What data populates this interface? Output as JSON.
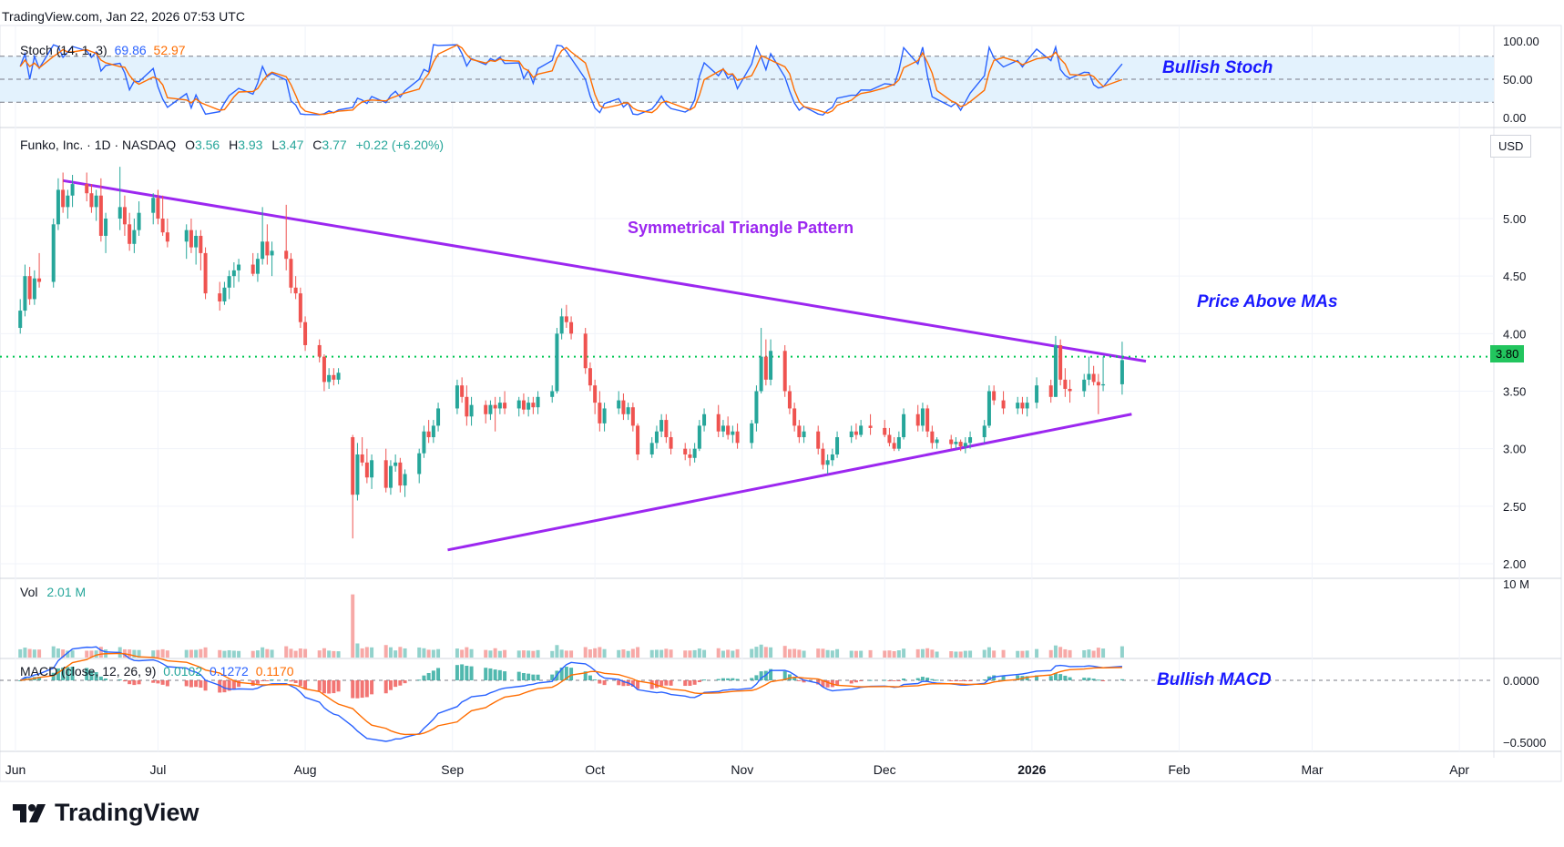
{
  "header": {
    "source": "TradingView.com",
    "date": "Jan 22, 2026 07:53 UTC"
  },
  "stoch": {
    "label": "Stoch (14, 1, 3)",
    "k_value": "69.86",
    "d_value": "52.97",
    "ticks": [
      "100.00",
      "50.00",
      "0.00"
    ],
    "annotation": "Bullish Stoch",
    "colors": {
      "k": "#2962ff",
      "d": "#ff6d00",
      "band": "#e3f2fd"
    }
  },
  "price": {
    "symbol": "Funko, Inc. · 1D · NASDAQ",
    "o_label": "O",
    "o": "3.56",
    "h_label": "H",
    "h": "3.93",
    "l_label": "L",
    "l": "3.47",
    "c_label": "C",
    "c": "3.77",
    "change": "+0.22 (+6.20%)",
    "currency": "USD",
    "current_price": "3.80",
    "ticks": [
      "5.00",
      "4.50",
      "4.00",
      "3.50",
      "3.00",
      "2.50",
      "2.00"
    ],
    "pattern_label": "Symmetrical Triangle Pattern",
    "ma_label": "Price Above MAs",
    "colors": {
      "up": "#26a69a",
      "down": "#ef5350",
      "pattern": "#9c27f0",
      "level": "#00c853"
    }
  },
  "volume": {
    "label": "Vol",
    "value": "2.01 M",
    "tick": "10 M"
  },
  "macd": {
    "label": "MACD (close, 12, 26, 9)",
    "hist": "0.0102",
    "macd": "0.1272",
    "signal": "0.1170",
    "ticks": [
      "0.0000",
      "−0.5000"
    ],
    "annotation": "Bullish MACD",
    "colors": {
      "macd": "#2962ff",
      "signal": "#ff6d00",
      "hist_up": "#26a69a",
      "hist_down": "#ef5350"
    }
  },
  "time_axis": [
    "Jun",
    "Jul",
    "Aug",
    "Sep",
    "Oct",
    "Nov",
    "Dec",
    "2026",
    "Feb",
    "Mar",
    "Apr"
  ],
  "brand": "TradingView",
  "chart_data": {
    "type": "candlestick",
    "title": "Funko, Inc. · 1D · NASDAQ",
    "ylim": [
      2.0,
      5.6
    ],
    "x_range": [
      "2025-06-01",
      "2026-04-05"
    ],
    "current_price": 3.8,
    "trendlines": [
      {
        "name": "upper",
        "from": [
          "2025-06-11",
          5.33
        ],
        "to": [
          "2026-01-25",
          3.76
        ]
      },
      {
        "name": "lower",
        "from": [
          "2025-08-31",
          2.12
        ],
        "to": [
          "2026-01-22",
          3.3
        ]
      }
    ],
    "candles": [
      [
        "2025-06-02",
        4.05,
        4.3,
        4.0,
        4.2
      ],
      [
        "2025-06-03",
        4.2,
        4.6,
        4.15,
        4.5
      ],
      [
        "2025-06-04",
        4.5,
        4.58,
        4.25,
        4.3
      ],
      [
        "2025-06-05",
        4.3,
        4.55,
        4.25,
        4.48
      ],
      [
        "2025-06-06",
        4.48,
        4.7,
        4.4,
        4.45
      ],
      [
        "2025-06-09",
        4.45,
        5.0,
        4.4,
        4.95
      ],
      [
        "2025-06-10",
        4.95,
        5.35,
        4.9,
        5.25
      ],
      [
        "2025-06-11",
        5.25,
        5.4,
        5.05,
        5.1
      ],
      [
        "2025-06-12",
        5.1,
        5.25,
        5.0,
        5.2
      ],
      [
        "2025-06-13",
        5.2,
        5.38,
        5.1,
        5.3
      ],
      [
        "2025-06-16",
        5.3,
        5.4,
        5.15,
        5.22
      ],
      [
        "2025-06-17",
        5.22,
        5.3,
        5.05,
        5.1
      ],
      [
        "2025-06-18",
        5.1,
        5.25,
        4.98,
        5.2
      ],
      [
        "2025-06-19",
        5.2,
        5.35,
        4.8,
        4.85
      ],
      [
        "2025-06-20",
        4.85,
        5.05,
        4.7,
        5.0
      ],
      [
        "2025-06-23",
        5.0,
        5.45,
        4.9,
        5.1
      ],
      [
        "2025-06-24",
        5.1,
        5.2,
        4.85,
        4.95
      ],
      [
        "2025-06-25",
        4.95,
        5.05,
        4.72,
        4.78
      ],
      [
        "2025-06-26",
        4.78,
        5.0,
        4.7,
        4.9
      ],
      [
        "2025-06-27",
        4.9,
        5.15,
        4.85,
        5.05
      ],
      [
        "2025-06-30",
        5.05,
        5.22,
        4.95,
        5.18
      ],
      [
        "2025-07-01",
        5.18,
        5.25,
        4.95,
        5.0
      ],
      [
        "2025-07-02",
        5.0,
        5.2,
        4.85,
        4.88
      ],
      [
        "2025-07-03",
        4.88,
        5.0,
        4.75,
        4.8
      ],
      [
        "2025-07-07",
        4.8,
        4.95,
        4.65,
        4.9
      ],
      [
        "2025-07-08",
        4.9,
        5.0,
        4.7,
        4.75
      ],
      [
        "2025-07-09",
        4.75,
        4.9,
        4.6,
        4.85
      ],
      [
        "2025-07-10",
        4.85,
        4.9,
        4.55,
        4.7
      ],
      [
        "2025-07-11",
        4.7,
        4.75,
        4.3,
        4.35
      ],
      [
        "2025-07-14",
        4.35,
        4.45,
        4.2,
        4.28
      ],
      [
        "2025-07-15",
        4.28,
        4.45,
        4.25,
        4.4
      ],
      [
        "2025-07-16",
        4.4,
        4.55,
        4.3,
        4.5
      ],
      [
        "2025-07-17",
        4.5,
        4.62,
        4.4,
        4.55
      ],
      [
        "2025-07-18",
        4.55,
        4.65,
        4.45,
        4.6
      ],
      [
        "2025-07-21",
        4.6,
        4.7,
        4.5,
        4.52
      ],
      [
        "2025-07-22",
        4.52,
        4.7,
        4.45,
        4.65
      ],
      [
        "2025-07-23",
        4.65,
        5.1,
        4.6,
        4.8
      ],
      [
        "2025-07-24",
        4.8,
        4.95,
        4.6,
        4.68
      ],
      [
        "2025-07-25",
        4.68,
        4.8,
        4.5,
        4.72
      ],
      [
        "2025-07-28",
        4.72,
        5.12,
        4.55,
        4.65
      ],
      [
        "2025-07-29",
        4.65,
        4.7,
        4.35,
        4.4
      ],
      [
        "2025-07-30",
        4.4,
        4.5,
        4.3,
        4.35
      ],
      [
        "2025-07-31",
        4.35,
        4.4,
        4.05,
        4.1
      ],
      [
        "2025-08-01",
        4.1,
        4.15,
        3.85,
        3.9
      ],
      [
        "2025-08-04",
        3.9,
        3.95,
        3.75,
        3.8
      ],
      [
        "2025-08-05",
        3.8,
        3.82,
        3.5,
        3.58
      ],
      [
        "2025-08-06",
        3.58,
        3.7,
        3.52,
        3.64
      ],
      [
        "2025-08-07",
        3.64,
        3.7,
        3.55,
        3.6
      ],
      [
        "2025-08-08",
        3.6,
        3.7,
        3.56,
        3.66
      ],
      [
        "2025-08-11",
        3.1,
        3.12,
        2.22,
        2.6
      ],
      [
        "2025-08-12",
        2.6,
        3.05,
        2.55,
        2.95
      ],
      [
        "2025-08-13",
        2.95,
        3.1,
        2.85,
        2.88
      ],
      [
        "2025-08-14",
        2.88,
        3.0,
        2.7,
        2.75
      ],
      [
        "2025-08-15",
        2.75,
        2.95,
        2.65,
        2.9
      ],
      [
        "2025-08-18",
        2.9,
        3.0,
        2.62,
        2.66
      ],
      [
        "2025-08-19",
        2.66,
        2.9,
        2.6,
        2.85
      ],
      [
        "2025-08-20",
        2.85,
        2.95,
        2.8,
        2.88
      ],
      [
        "2025-08-21",
        2.88,
        2.92,
        2.62,
        2.68
      ],
      [
        "2025-08-22",
        2.68,
        2.82,
        2.58,
        2.78
      ],
      [
        "2025-08-25",
        2.78,
        3.0,
        2.7,
        2.96
      ],
      [
        "2025-08-26",
        2.96,
        3.2,
        2.92,
        3.15
      ],
      [
        "2025-08-27",
        3.15,
        3.25,
        3.05,
        3.1
      ],
      [
        "2025-08-28",
        3.1,
        3.25,
        3.05,
        3.2
      ],
      [
        "2025-08-29",
        3.2,
        3.4,
        3.15,
        3.35
      ],
      [
        "2025-09-02",
        3.35,
        3.6,
        3.3,
        3.55
      ],
      [
        "2025-09-03",
        3.55,
        3.62,
        3.4,
        3.45
      ],
      [
        "2025-09-04",
        3.45,
        3.55,
        3.2,
        3.28
      ],
      [
        "2025-09-05",
        3.28,
        3.45,
        3.2,
        3.38
      ],
      [
        "2025-09-08",
        3.38,
        3.42,
        3.22,
        3.3
      ],
      [
        "2025-09-09",
        3.3,
        3.42,
        3.25,
        3.38
      ],
      [
        "2025-09-10",
        3.38,
        3.45,
        3.15,
        3.35
      ],
      [
        "2025-09-11",
        3.35,
        3.45,
        3.3,
        3.4
      ],
      [
        "2025-09-12",
        3.4,
        3.5,
        3.3,
        3.35
      ],
      [
        "2025-09-15",
        3.35,
        3.45,
        3.28,
        3.42
      ],
      [
        "2025-09-16",
        3.42,
        3.48,
        3.3,
        3.34
      ],
      [
        "2025-09-17",
        3.34,
        3.45,
        3.28,
        3.4
      ],
      [
        "2025-09-18",
        3.4,
        3.45,
        3.3,
        3.36
      ],
      [
        "2025-09-19",
        3.36,
        3.5,
        3.3,
        3.45
      ],
      [
        "2025-09-22",
        3.45,
        3.55,
        3.4,
        3.5
      ],
      [
        "2025-09-23",
        3.5,
        4.05,
        3.48,
        4.0
      ],
      [
        "2025-09-24",
        4.0,
        4.22,
        3.95,
        4.15
      ],
      [
        "2025-09-25",
        4.15,
        4.25,
        4.05,
        4.1
      ],
      [
        "2025-09-26",
        4.1,
        4.15,
        3.95,
        4.0
      ],
      [
        "2025-09-29",
        4.0,
        4.05,
        3.65,
        3.7
      ],
      [
        "2025-09-30",
        3.7,
        3.75,
        3.5,
        3.55
      ],
      [
        "2025-10-01",
        3.55,
        3.6,
        3.3,
        3.4
      ],
      [
        "2025-10-02",
        3.4,
        3.5,
        3.15,
        3.22
      ],
      [
        "2025-10-03",
        3.22,
        3.4,
        3.15,
        3.35
      ],
      [
        "2025-10-06",
        3.35,
        3.5,
        3.3,
        3.42
      ],
      [
        "2025-10-07",
        3.42,
        3.48,
        3.25,
        3.3
      ],
      [
        "2025-10-08",
        3.3,
        3.4,
        3.25,
        3.36
      ],
      [
        "2025-10-09",
        3.36,
        3.4,
        3.15,
        3.2
      ],
      [
        "2025-10-10",
        3.2,
        3.22,
        2.9,
        2.95
      ],
      [
        "2025-10-13",
        2.95,
        3.1,
        2.92,
        3.05
      ],
      [
        "2025-10-14",
        3.05,
        3.2,
        3.0,
        3.15
      ],
      [
        "2025-10-15",
        3.15,
        3.3,
        3.1,
        3.25
      ],
      [
        "2025-10-16",
        3.25,
        3.3,
        3.05,
        3.1
      ],
      [
        "2025-10-17",
        3.1,
        3.15,
        2.95,
        3.0
      ],
      [
        "2025-10-20",
        3.0,
        3.05,
        2.9,
        2.95
      ],
      [
        "2025-10-21",
        2.95,
        3.0,
        2.85,
        2.92
      ],
      [
        "2025-10-22",
        2.92,
        3.05,
        2.88,
        3.0
      ],
      [
        "2025-10-23",
        3.0,
        3.25,
        2.98,
        3.2
      ],
      [
        "2025-10-24",
        3.2,
        3.35,
        3.15,
        3.3
      ],
      [
        "2025-10-27",
        3.3,
        3.38,
        3.1,
        3.15
      ],
      [
        "2025-10-28",
        3.15,
        3.25,
        3.1,
        3.2
      ],
      [
        "2025-10-29",
        3.2,
        3.28,
        3.08,
        3.12
      ],
      [
        "2025-10-30",
        3.12,
        3.2,
        3.05,
        3.15
      ],
      [
        "2025-10-31",
        3.15,
        3.22,
        3.0,
        3.05
      ],
      [
        "2025-11-03",
        3.05,
        3.25,
        3.0,
        3.22
      ],
      [
        "2025-11-04",
        3.22,
        3.55,
        3.15,
        3.5
      ],
      [
        "2025-11-05",
        3.5,
        4.05,
        3.48,
        3.8
      ],
      [
        "2025-11-06",
        3.8,
        3.95,
        3.55,
        3.6
      ],
      [
        "2025-11-07",
        3.6,
        3.95,
        3.55,
        3.85
      ],
      [
        "2025-11-10",
        3.85,
        3.9,
        3.45,
        3.5
      ],
      [
        "2025-11-11",
        3.5,
        3.55,
        3.3,
        3.35
      ],
      [
        "2025-11-12",
        3.35,
        3.4,
        3.15,
        3.2
      ],
      [
        "2025-11-13",
        3.2,
        3.25,
        3.05,
        3.1
      ],
      [
        "2025-11-14",
        3.1,
        3.2,
        3.05,
        3.15
      ],
      [
        "2025-11-17",
        3.15,
        3.2,
        2.95,
        3.0
      ],
      [
        "2025-11-18",
        3.0,
        3.05,
        2.82,
        2.86
      ],
      [
        "2025-11-19",
        2.86,
        2.95,
        2.78,
        2.9
      ],
      [
        "2025-11-20",
        2.9,
        3.0,
        2.85,
        2.95
      ],
      [
        "2025-11-21",
        2.95,
        3.15,
        2.92,
        3.1
      ],
      [
        "2025-11-24",
        3.1,
        3.2,
        3.05,
        3.15
      ],
      [
        "2025-11-25",
        3.15,
        3.22,
        3.08,
        3.12
      ],
      [
        "2025-11-26",
        3.12,
        3.25,
        3.1,
        3.2
      ],
      [
        "2025-11-28",
        3.2,
        3.3,
        3.12,
        3.18
      ],
      [
        "2025-12-01",
        3.18,
        3.25,
        3.1,
        3.12
      ],
      [
        "2025-12-02",
        3.12,
        3.18,
        3.02,
        3.05
      ],
      [
        "2025-12-03",
        3.05,
        3.1,
        2.98,
        3.0
      ],
      [
        "2025-12-04",
        3.0,
        3.15,
        2.98,
        3.1
      ],
      [
        "2025-12-05",
        3.1,
        3.35,
        3.08,
        3.3
      ],
      [
        "2025-12-08",
        3.3,
        3.38,
        3.15,
        3.2
      ],
      [
        "2025-12-09",
        3.2,
        3.4,
        3.15,
        3.35
      ],
      [
        "2025-12-10",
        3.35,
        3.38,
        3.1,
        3.15
      ],
      [
        "2025-12-11",
        3.15,
        3.2,
        3.0,
        3.05
      ],
      [
        "2025-12-12",
        3.05,
        3.1,
        3.0,
        3.08
      ],
      [
        "2025-12-15",
        3.08,
        3.12,
        3.0,
        3.04
      ],
      [
        "2025-12-16",
        3.04,
        3.1,
        3.0,
        3.06
      ],
      [
        "2025-12-17",
        3.06,
        3.08,
        2.98,
        3.02
      ],
      [
        "2025-12-18",
        3.02,
        3.1,
        2.96,
        3.05
      ],
      [
        "2025-12-19",
        3.05,
        3.15,
        3.0,
        3.1
      ],
      [
        "2025-12-22",
        3.1,
        3.25,
        3.05,
        3.2
      ],
      [
        "2025-12-23",
        3.2,
        3.55,
        3.18,
        3.5
      ],
      [
        "2025-12-24",
        3.5,
        3.55,
        3.38,
        3.42
      ],
      [
        "2025-12-26",
        3.42,
        3.5,
        3.3,
        3.35
      ],
      [
        "2025-12-29",
        3.35,
        3.45,
        3.3,
        3.4
      ],
      [
        "2025-12-30",
        3.4,
        3.45,
        3.3,
        3.35
      ],
      [
        "2025-12-31",
        3.35,
        3.45,
        3.28,
        3.4
      ],
      [
        "2026-01-02",
        3.4,
        3.62,
        3.35,
        3.55
      ],
      [
        "2026-01-05",
        3.55,
        3.6,
        3.4,
        3.45
      ],
      [
        "2026-01-06",
        3.45,
        3.98,
        3.45,
        3.9
      ],
      [
        "2026-01-07",
        3.9,
        3.95,
        3.55,
        3.6
      ],
      [
        "2026-01-08",
        3.6,
        3.7,
        3.45,
        3.52
      ],
      [
        "2026-01-09",
        3.52,
        3.6,
        3.4,
        3.5
      ],
      [
        "2026-01-12",
        3.5,
        3.65,
        3.45,
        3.6
      ],
      [
        "2026-01-13",
        3.6,
        3.8,
        3.55,
        3.65
      ],
      [
        "2026-01-14",
        3.65,
        3.72,
        3.55,
        3.58
      ],
      [
        "2026-01-15",
        3.58,
        3.65,
        3.3,
        3.55
      ],
      [
        "2026-01-16",
        3.55,
        3.8,
        3.5,
        3.56
      ],
      [
        "2026-01-20",
        3.56,
        3.93,
        3.47,
        3.77
      ]
    ]
  }
}
